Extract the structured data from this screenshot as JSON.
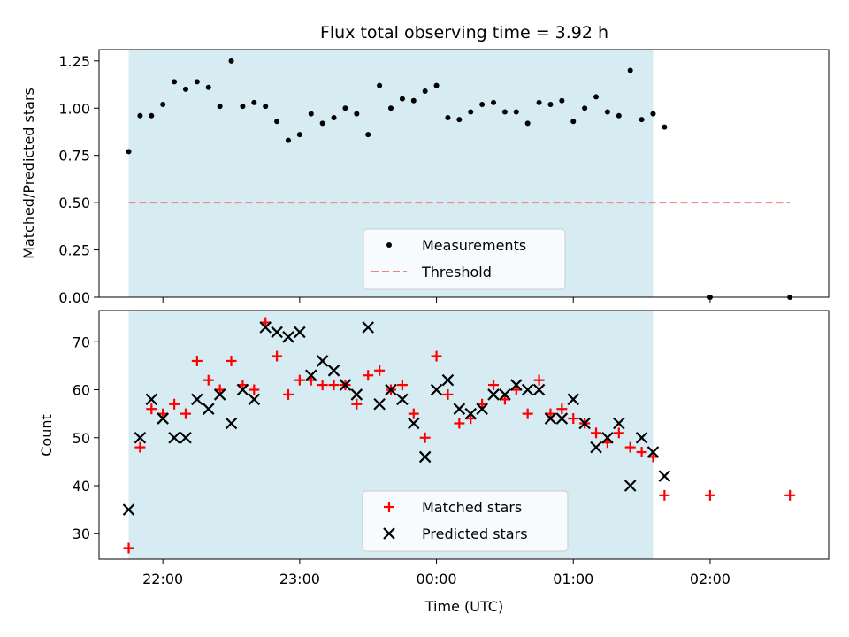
{
  "chart_data": [
    {
      "type": "scatter",
      "title": "Flux total observing time = 3.92 h",
      "ylabel": "Matched/Predicted stars",
      "xlabel": "",
      "x_ticks": [
        "22:00",
        "23:00",
        "00:00",
        "01:00",
        "02:00"
      ],
      "xlim": [
        "21:32",
        "02:52"
      ],
      "ylim": [
        0,
        1.31
      ],
      "y_ticks": [
        "0.00",
        "0.25",
        "0.50",
        "0.75",
        "1.00",
        "1.25"
      ],
      "shaded_region": [
        "21:45",
        "01:35"
      ],
      "legend_placement": "lower-center",
      "colors": {
        "measurements": "#000000",
        "threshold": "#f08080",
        "shade": "#add8e6"
      },
      "threshold": {
        "name": "Threshold",
        "y": 0.5,
        "x_range": [
          "21:45",
          "02:35"
        ]
      },
      "series": [
        {
          "name": "Measurements",
          "points": [
            [
              "21:45",
              0.77
            ],
            [
              "21:50",
              0.96
            ],
            [
              "21:55",
              0.96
            ],
            [
              "22:00",
              1.02
            ],
            [
              "22:05",
              1.14
            ],
            [
              "22:10",
              1.1
            ],
            [
              "22:15",
              1.14
            ],
            [
              "22:20",
              1.11
            ],
            [
              "22:25",
              1.01
            ],
            [
              "22:30",
              1.25
            ],
            [
              "22:35",
              1.01
            ],
            [
              "22:40",
              1.03
            ],
            [
              "22:45",
              1.01
            ],
            [
              "22:50",
              0.93
            ],
            [
              "22:55",
              0.83
            ],
            [
              "23:00",
              0.86
            ],
            [
              "23:05",
              0.97
            ],
            [
              "23:10",
              0.92
            ],
            [
              "23:15",
              0.95
            ],
            [
              "23:20",
              1.0
            ],
            [
              "23:25",
              0.97
            ],
            [
              "23:30",
              0.86
            ],
            [
              "23:35",
              1.12
            ],
            [
              "23:40",
              1.0
            ],
            [
              "23:45",
              1.05
            ],
            [
              "23:50",
              1.04
            ],
            [
              "23:55",
              1.09
            ],
            [
              "00:00",
              1.12
            ],
            [
              "00:05",
              0.95
            ],
            [
              "00:10",
              0.94
            ],
            [
              "00:15",
              0.98
            ],
            [
              "00:20",
              1.02
            ],
            [
              "00:25",
              1.03
            ],
            [
              "00:30",
              0.98
            ],
            [
              "00:35",
              0.98
            ],
            [
              "00:40",
              0.92
            ],
            [
              "00:45",
              1.03
            ],
            [
              "00:50",
              1.02
            ],
            [
              "00:55",
              1.04
            ],
            [
              "01:00",
              0.93
            ],
            [
              "01:05",
              1.0
            ],
            [
              "01:10",
              1.06
            ],
            [
              "01:15",
              0.98
            ],
            [
              "01:20",
              0.96
            ],
            [
              "01:25",
              1.2
            ],
            [
              "01:30",
              0.94
            ],
            [
              "01:35",
              0.97
            ],
            [
              "01:40",
              0.9
            ],
            [
              "02:00",
              0.0
            ],
            [
              "02:35",
              0.0
            ]
          ]
        }
      ]
    },
    {
      "type": "scatter",
      "title": "",
      "ylabel": "Count",
      "xlabel": "Time (UTC)",
      "x_ticks": [
        "22:00",
        "23:00",
        "00:00",
        "01:00",
        "02:00"
      ],
      "xlim": [
        "21:32",
        "02:52"
      ],
      "ylim": [
        24.7,
        76.5
      ],
      "y_ticks": [
        "30",
        "40",
        "50",
        "60",
        "70"
      ],
      "shaded_region": [
        "21:45",
        "01:35"
      ],
      "legend_placement": "lower-center",
      "colors": {
        "matched": "#ff0000",
        "predicted": "#000000"
      },
      "series": [
        {
          "name": "Matched stars",
          "points": [
            [
              "21:45",
              27
            ],
            [
              "21:50",
              48
            ],
            [
              "21:55",
              56
            ],
            [
              "22:00",
              55
            ],
            [
              "22:05",
              57
            ],
            [
              "22:10",
              55
            ],
            [
              "22:15",
              66
            ],
            [
              "22:20",
              62
            ],
            [
              "22:25",
              60
            ],
            [
              "22:30",
              66
            ],
            [
              "22:35",
              61
            ],
            [
              "22:40",
              60
            ],
            [
              "22:45",
              74
            ],
            [
              "22:50",
              67
            ],
            [
              "22:55",
              59
            ],
            [
              "23:00",
              62
            ],
            [
              "23:05",
              62
            ],
            [
              "23:10",
              61
            ],
            [
              "23:15",
              61
            ],
            [
              "23:20",
              61
            ],
            [
              "23:25",
              57
            ],
            [
              "23:30",
              63
            ],
            [
              "23:35",
              64
            ],
            [
              "23:40",
              60
            ],
            [
              "23:45",
              61
            ],
            [
              "23:50",
              55
            ],
            [
              "23:55",
              50
            ],
            [
              "00:00",
              67
            ],
            [
              "00:05",
              59
            ],
            [
              "00:10",
              53
            ],
            [
              "00:15",
              54
            ],
            [
              "00:20",
              57
            ],
            [
              "00:25",
              61
            ],
            [
              "00:30",
              58
            ],
            [
              "00:35",
              60
            ],
            [
              "00:40",
              55
            ],
            [
              "00:45",
              62
            ],
            [
              "00:50",
              55
            ],
            [
              "00:55",
              56
            ],
            [
              "01:00",
              54
            ],
            [
              "01:05",
              53
            ],
            [
              "01:10",
              51
            ],
            [
              "01:15",
              49
            ],
            [
              "01:20",
              51
            ],
            [
              "01:25",
              48
            ],
            [
              "01:30",
              47
            ],
            [
              "01:35",
              46
            ],
            [
              "01:40",
              38
            ],
            [
              "02:00",
              38
            ],
            [
              "02:35",
              38
            ]
          ]
        },
        {
          "name": "Predicted stars",
          "points": [
            [
              "21:45",
              35
            ],
            [
              "21:50",
              50
            ],
            [
              "21:55",
              58
            ],
            [
              "22:00",
              54
            ],
            [
              "22:05",
              50
            ],
            [
              "22:10",
              50
            ],
            [
              "22:15",
              58
            ],
            [
              "22:20",
              56
            ],
            [
              "22:25",
              59
            ],
            [
              "22:30",
              53
            ],
            [
              "22:35",
              60
            ],
            [
              "22:40",
              58
            ],
            [
              "22:45",
              73
            ],
            [
              "22:50",
              72
            ],
            [
              "22:55",
              71
            ],
            [
              "23:00",
              72
            ],
            [
              "23:05",
              63
            ],
            [
              "23:10",
              66
            ],
            [
              "23:15",
              64
            ],
            [
              "23:20",
              61
            ],
            [
              "23:25",
              59
            ],
            [
              "23:30",
              73
            ],
            [
              "23:35",
              57
            ],
            [
              "23:40",
              60
            ],
            [
              "23:45",
              58
            ],
            [
              "23:50",
              53
            ],
            [
              "23:55",
              46
            ],
            [
              "00:00",
              60
            ],
            [
              "00:05",
              62
            ],
            [
              "00:10",
              56
            ],
            [
              "00:15",
              55
            ],
            [
              "00:20",
              56
            ],
            [
              "00:25",
              59
            ],
            [
              "00:30",
              59
            ],
            [
              "00:35",
              61
            ],
            [
              "00:40",
              60
            ],
            [
              "00:45",
              60
            ],
            [
              "00:50",
              54
            ],
            [
              "00:55",
              54
            ],
            [
              "01:00",
              58
            ],
            [
              "01:05",
              53
            ],
            [
              "01:10",
              48
            ],
            [
              "01:15",
              50
            ],
            [
              "01:20",
              53
            ],
            [
              "01:25",
              40
            ],
            [
              "01:30",
              50
            ],
            [
              "01:35",
              47
            ],
            [
              "01:40",
              42
            ]
          ]
        }
      ]
    }
  ]
}
